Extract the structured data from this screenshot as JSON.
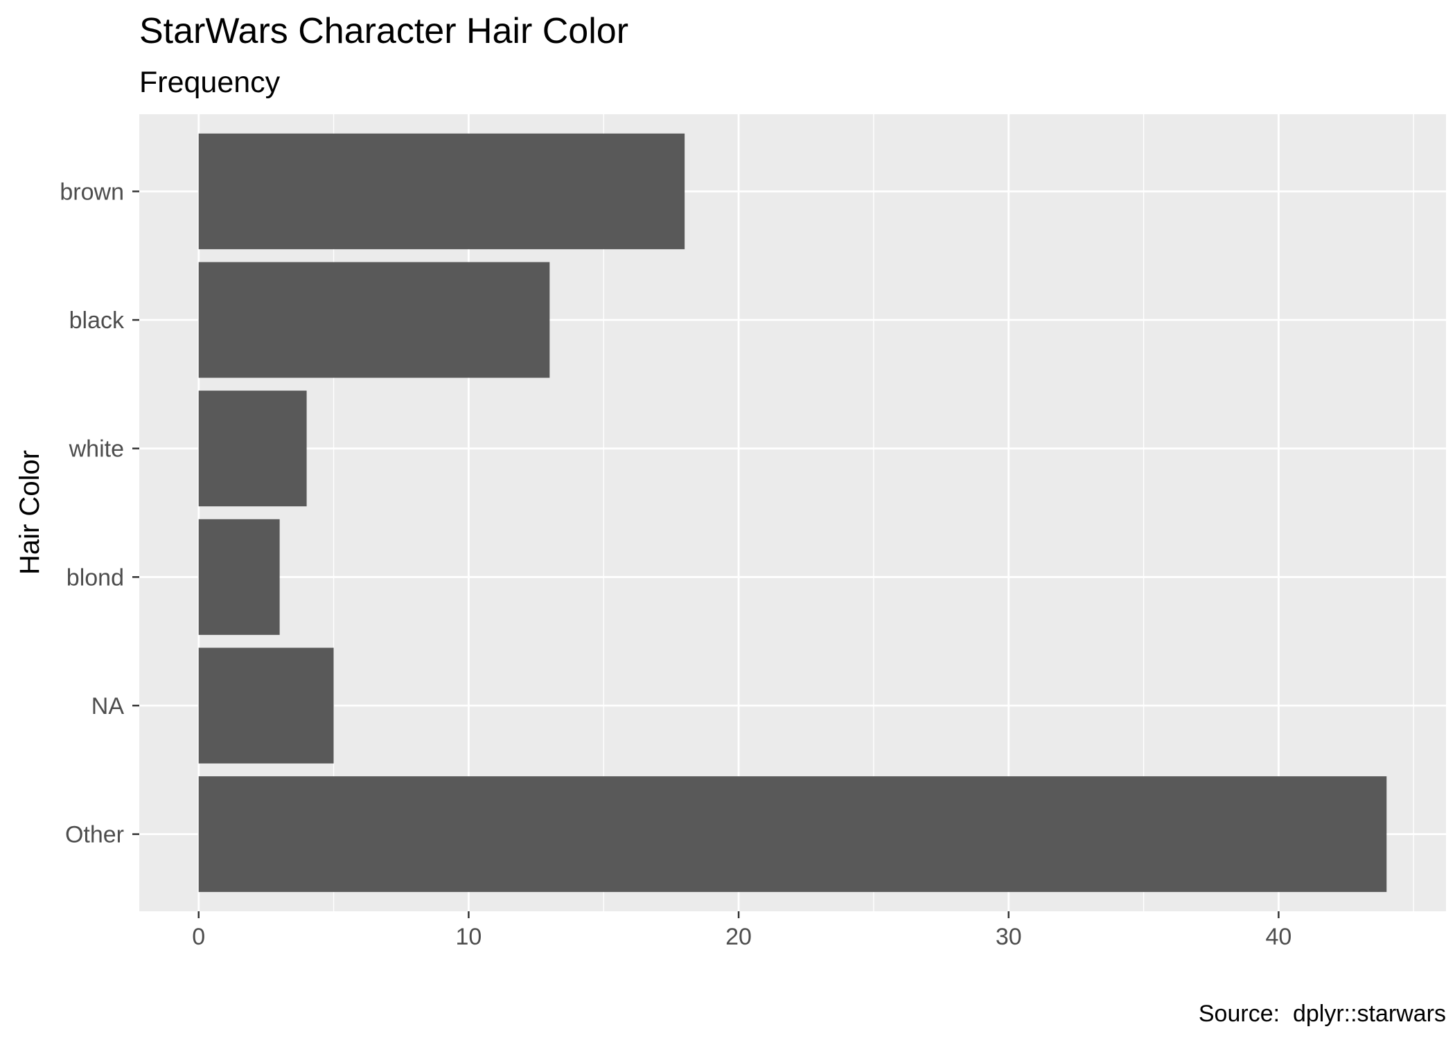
{
  "chart_data": {
    "type": "bar",
    "orientation": "horizontal",
    "title": "StarWars Character Hair Color",
    "subtitle": "Frequency",
    "ylabel": "Hair Color",
    "xlabel": "",
    "caption": "Source:  dplyr::starwars",
    "categories": [
      "brown",
      "black",
      "white",
      "blond",
      "NA",
      "Other"
    ],
    "values": [
      18,
      13,
      4,
      3,
      5,
      44
    ],
    "xlim": [
      -2.2,
      46.2
    ],
    "xticks": [
      0,
      10,
      20,
      30,
      40
    ],
    "xtick_labels": [
      "0",
      "10",
      "20",
      "30",
      "40"
    ],
    "grid": true,
    "legend": "none",
    "colors": {
      "bar": "#595959",
      "panel_background": "#ebebeb",
      "grid": "#ffffff",
      "tick_label": "#4d4d4d",
      "tick_mark": "#333333"
    }
  }
}
